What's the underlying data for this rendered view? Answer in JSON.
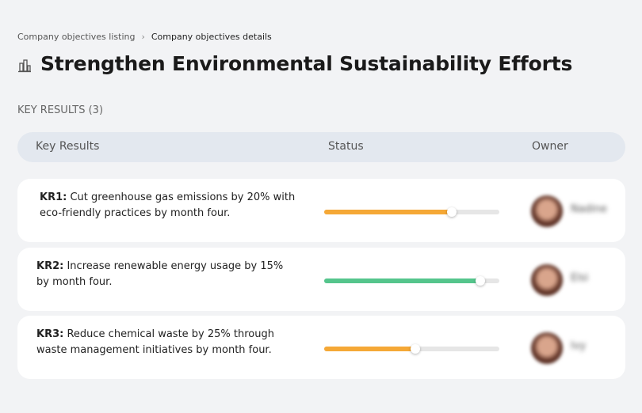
{
  "breadcrumb": {
    "parent": "Company objectives listing",
    "current": "Company objectives details"
  },
  "title": "Strengthen Environmental Sustainability Efforts",
  "section_label": "KEY RESULTS (3)",
  "table": {
    "headers": [
      "Key Results",
      "Status",
      "Owner"
    ],
    "rows": [
      {
        "id": "KR1:",
        "text": "Cut greenhouse gas emissions by 20% with eco-friendly practices by month four.",
        "progress": 73,
        "color": "#f5a836",
        "owner": "Nadine"
      },
      {
        "id": "KR2:",
        "text": "Increase renewable energy usage by 15% by month four.",
        "progress": 89,
        "color": "#55c58c",
        "owner": "Elsi"
      },
      {
        "id": "KR3:",
        "text": "Reduce chemical waste by 25% through waste management initiatives by month four.",
        "progress": 52,
        "color": "#f5a836",
        "owner": "Ivy"
      }
    ]
  }
}
